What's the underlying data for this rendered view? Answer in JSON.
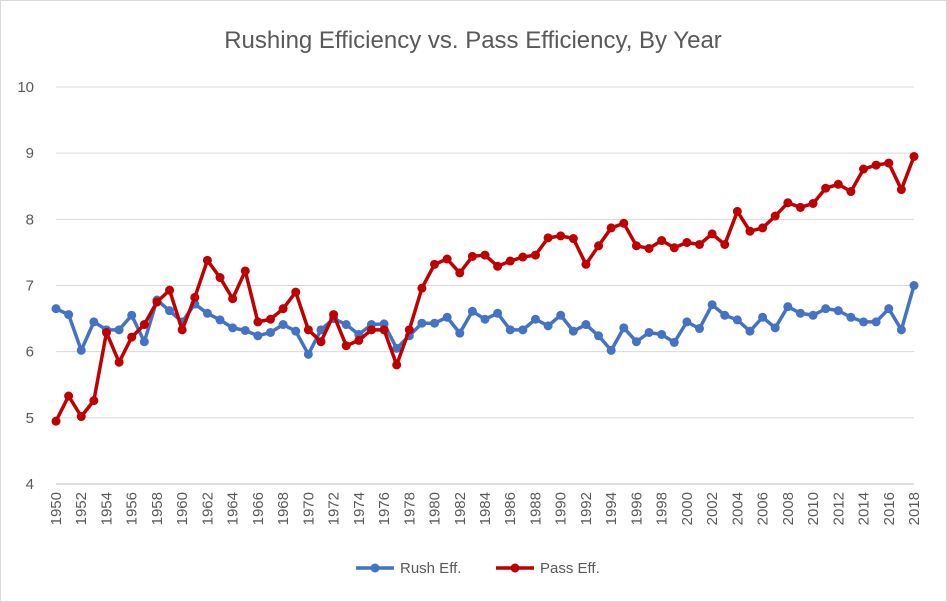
{
  "chart_data": {
    "type": "line",
    "title": "Rushing Efficiency vs. Pass Efficiency, By Year",
    "xlabel": "",
    "ylabel": "",
    "ylim": [
      4,
      10
    ],
    "yticks": [
      "4",
      "5",
      "6",
      "7",
      "8",
      "9",
      "10"
    ],
    "x": [
      1950,
      1951,
      1952,
      1953,
      1954,
      1955,
      1956,
      1957,
      1958,
      1959,
      1960,
      1961,
      1962,
      1963,
      1964,
      1965,
      1966,
      1967,
      1968,
      1969,
      1970,
      1971,
      1972,
      1973,
      1974,
      1975,
      1976,
      1977,
      1978,
      1979,
      1980,
      1981,
      1982,
      1983,
      1984,
      1985,
      1986,
      1987,
      1988,
      1989,
      1990,
      1991,
      1992,
      1993,
      1994,
      1995,
      1996,
      1997,
      1998,
      1999,
      2000,
      2001,
      2002,
      2003,
      2004,
      2005,
      2006,
      2007,
      2008,
      2009,
      2010,
      2011,
      2012,
      2013,
      2014,
      2015,
      2016,
      2017,
      2018
    ],
    "xtick_labels": [
      "1950",
      "1952",
      "1954",
      "1956",
      "1958",
      "1960",
      "1962",
      "1964",
      "1966",
      "1968",
      "1970",
      "1972",
      "1974",
      "1976",
      "1978",
      "1980",
      "1982",
      "1984",
      "1986",
      "1988",
      "1990",
      "1992",
      "1994",
      "1996",
      "1998",
      "2000",
      "2002",
      "2004",
      "2006",
      "2008",
      "2010",
      "2012",
      "2014",
      "2016",
      "2018"
    ],
    "series": [
      {
        "name": "Rush Eff.",
        "color": "#4472c4",
        "values": [
          6.65,
          6.56,
          6.02,
          6.45,
          6.33,
          6.33,
          6.55,
          6.15,
          6.78,
          6.62,
          6.45,
          6.72,
          6.58,
          6.48,
          6.36,
          6.32,
          6.24,
          6.29,
          6.41,
          6.31,
          5.96,
          6.33,
          6.5,
          6.41,
          6.26,
          6.41,
          6.42,
          6.05,
          6.24,
          6.43,
          6.43,
          6.52,
          6.28,
          6.61,
          6.49,
          6.58,
          6.33,
          6.33,
          6.49,
          6.39,
          6.55,
          6.31,
          6.41,
          6.24,
          6.02,
          6.36,
          6.15,
          6.29,
          6.26,
          6.14,
          6.45,
          6.35,
          6.71,
          6.55,
          6.48,
          6.31,
          6.52,
          6.36,
          6.68,
          6.58,
          6.55,
          6.65,
          6.62,
          6.52,
          6.45,
          6.45,
          6.65,
          6.33,
          7.0
        ]
      },
      {
        "name": "Pass Eff.",
        "color": "#c00000",
        "values": [
          4.95,
          5.33,
          5.02,
          5.26,
          6.29,
          5.84,
          6.22,
          6.41,
          6.75,
          6.93,
          6.33,
          6.82,
          7.38,
          7.12,
          6.8,
          7.22,
          6.45,
          6.49,
          6.65,
          6.9,
          6.33,
          6.15,
          6.56,
          6.09,
          6.17,
          6.33,
          6.33,
          5.8,
          6.33,
          6.96,
          7.32,
          7.4,
          7.19,
          7.44,
          7.46,
          7.29,
          7.37,
          7.43,
          7.46,
          7.72,
          7.75,
          7.71,
          7.32,
          7.6,
          7.87,
          7.94,
          7.6,
          7.56,
          7.68,
          7.57,
          7.65,
          7.62,
          7.78,
          7.62,
          8.12,
          7.82,
          7.87,
          8.05,
          8.25,
          8.18,
          8.24,
          8.47,
          8.53,
          8.42,
          8.76,
          8.82,
          8.85,
          8.45,
          8.95
        ]
      }
    ]
  }
}
